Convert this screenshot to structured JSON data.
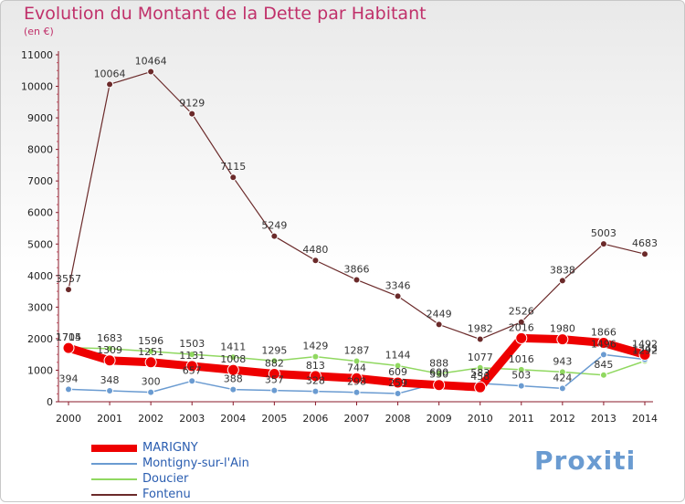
{
  "title": "Evolution du Montant de la Dette par Habitant",
  "subtitle": "(en €)",
  "brand": "Proxiti",
  "chart_data": {
    "type": "line",
    "x": [
      "2000",
      "2001",
      "2002",
      "2003",
      "2004",
      "2005",
      "2006",
      "2007",
      "2008",
      "2009",
      "2010",
      "2011",
      "2012",
      "2013",
      "2014"
    ],
    "ylim": [
      0,
      11000
    ],
    "yticks": [
      "0",
      "1000",
      "2000",
      "3000",
      "4000",
      "5000",
      "6000",
      "7000",
      "8000",
      "9000",
      "10000",
      "11000"
    ],
    "grid": false,
    "legend_position": "bottom-left",
    "series": [
      {
        "name": "Fontenu",
        "color": "#6b2a2a",
        "width": 1.2,
        "values": [
          3557,
          10064,
          10464,
          9129,
          7115,
          5249,
          4480,
          3866,
          3346,
          2449,
          1982,
          2526,
          3838,
          5003,
          4683
        ],
        "labels": [
          "3557",
          "10064",
          "10464",
          "9129",
          "7115",
          "5249",
          "4480",
          "3866",
          "3346",
          "2449",
          "1982",
          "2526",
          "3838",
          "5003",
          "4683"
        ]
      },
      {
        "name": "Doucier",
        "color": "#90d860",
        "width": 1.5,
        "values": [
          1714,
          1683,
          1596,
          1503,
          1411,
          1295,
          1429,
          1287,
          1144,
          888,
          1077,
          1016,
          943,
          845,
          1292
        ],
        "labels": [
          "1714",
          "1683",
          "1596",
          "1503",
          "1411",
          "1295",
          "1429",
          "1287",
          "1144",
          "888",
          "1077",
          "1016",
          "943",
          "845",
          "1292"
        ]
      },
      {
        "name": "Montigny-sur-l'Ain",
        "color": "#6a9bd1",
        "width": 1.5,
        "values": [
          394,
          348,
          300,
          657,
          388,
          357,
          328,
          298,
          259,
          600,
          583,
          503,
          424,
          1496,
          1343
        ],
        "labels": [
          "394",
          "348",
          "300",
          "657",
          "388",
          "357",
          "328",
          "298",
          "259",
          "600",
          "583",
          "503",
          "424",
          "1496",
          "1343"
        ]
      },
      {
        "name": "MARIGNY",
        "color": "#ee0000",
        "width": 9,
        "values": [
          1705,
          1309,
          1251,
          1131,
          1008,
          882,
          813,
          744,
          609,
          530,
          458,
          2016,
          1980,
          1866,
          1492
        ],
        "labels": [
          "1705",
          "1309",
          "1251",
          "1131",
          "1008",
          "882",
          "813",
          "744",
          "609",
          "530",
          "458",
          "2016",
          "1980",
          "1866",
          "1492"
        ]
      }
    ]
  },
  "legend": [
    {
      "name": "MARIGNY",
      "color": "#ee0000",
      "thickness": 8,
      "text_color": "#2a5db0"
    },
    {
      "name": "Montigny-sur-l'Ain",
      "color": "#6a9bd1",
      "thickness": 2,
      "text_color": "#2a5db0"
    },
    {
      "name": "Doucier",
      "color": "#90d860",
      "thickness": 2,
      "text_color": "#2a5db0"
    },
    {
      "name": "Fontenu",
      "color": "#6b2a2a",
      "thickness": 2,
      "text_color": "#2a5db0"
    }
  ]
}
